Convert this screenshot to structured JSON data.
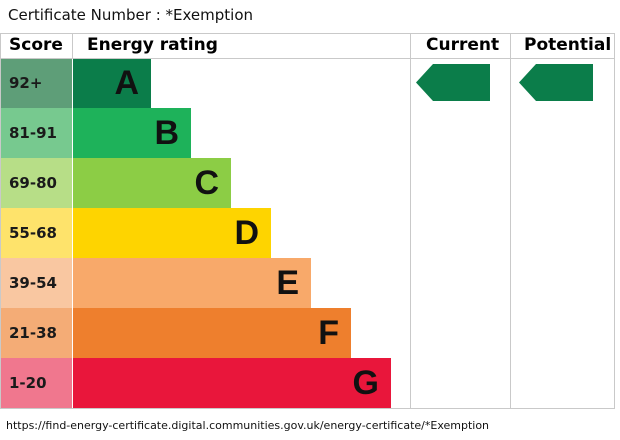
{
  "certificate_label": "Certificate Number : *Exemption",
  "headers": {
    "score": "Score",
    "energy_rating": "Energy rating",
    "current": "Current",
    "potential": "Potential"
  },
  "bands": [
    {
      "score": "92+",
      "letter": "A",
      "bar_color": "#0b7d4a",
      "score_color": "#5e9e78"
    },
    {
      "score": "81-91",
      "letter": "B",
      "bar_color": "#1eb25a",
      "score_color": "#77c98f"
    },
    {
      "score": "69-80",
      "letter": "C",
      "bar_color": "#8ccd45",
      "score_color": "#b7de87"
    },
    {
      "score": "55-68",
      "letter": "D",
      "bar_color": "#fed400",
      "score_color": "#fee36b"
    },
    {
      "score": "39-54",
      "letter": "E",
      "bar_color": "#f8a96a",
      "score_color": "#f9c7a1"
    },
    {
      "score": "21-38",
      "letter": "F",
      "bar_color": "#ee7f2d",
      "score_color": "#f4ac76"
    },
    {
      "score": "1-20",
      "letter": "G",
      "bar_color": "#e9163b",
      "score_color": "#f0778e"
    }
  ],
  "current_indicator": {
    "band": "A",
    "color": "#0b7d4a"
  },
  "potential_indicator": {
    "band": "A",
    "color": "#0b7d4a"
  },
  "footer_url": "https://find-energy-certificate.digital.communities.gov.uk/energy-certificate/*Exemption"
}
